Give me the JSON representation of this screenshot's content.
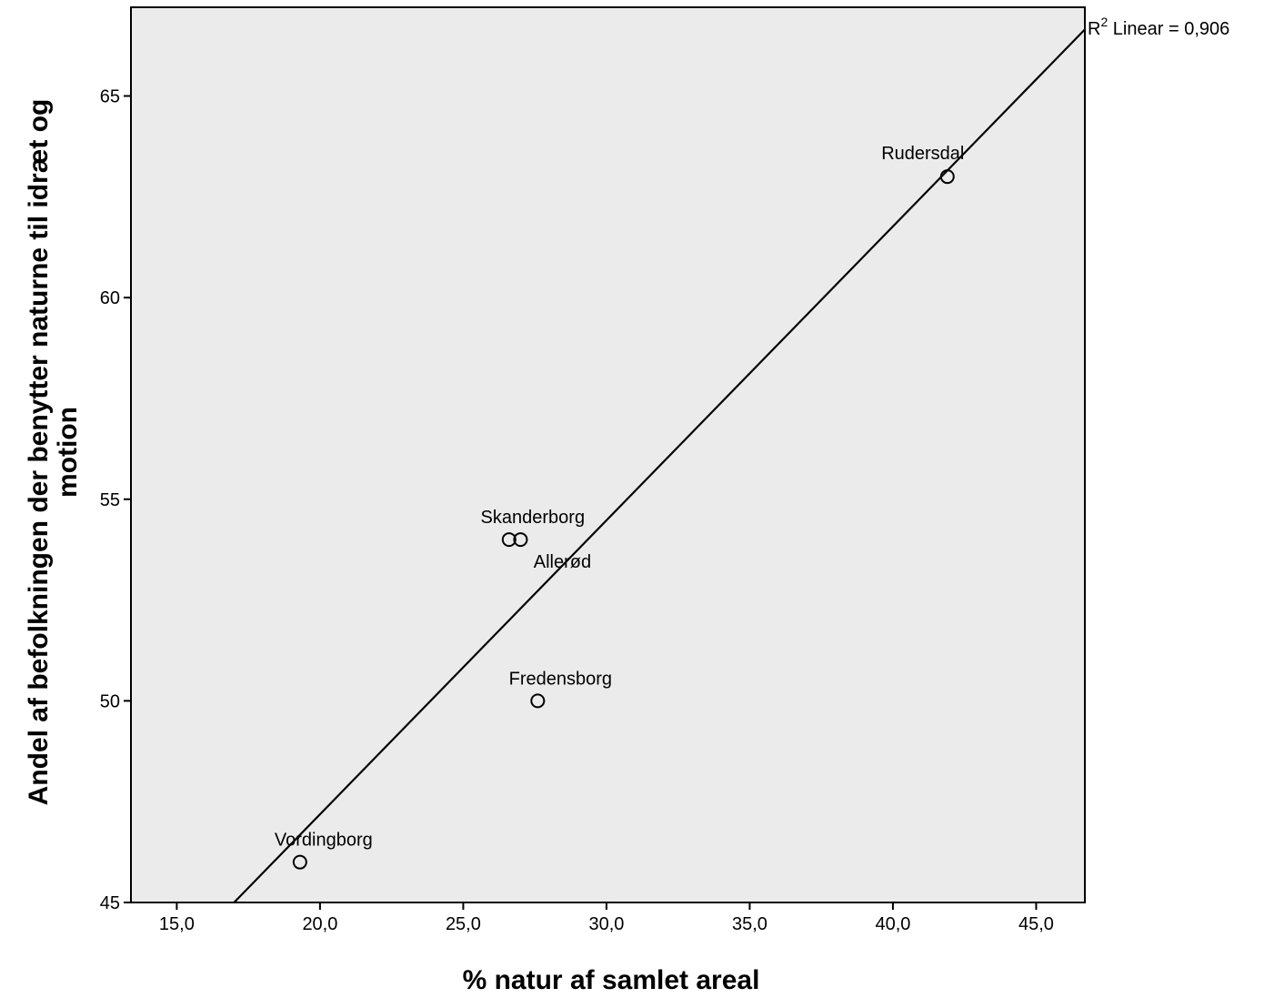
{
  "chart_data": {
    "type": "scatter",
    "title": "",
    "xlabel": "% natur af samlet areal",
    "ylabel_lines": [
      "Andel af befolkningen der benytter naturne til idræt og",
      "motion"
    ],
    "xlim": [
      13.4,
      46.7
    ],
    "ylim": [
      45,
      67.2
    ],
    "x_ticks": [
      15.0,
      20.0,
      25.0,
      30.0,
      35.0,
      40.0,
      45.0
    ],
    "x_tick_labels": [
      "15,0",
      "20,0",
      "25,0",
      "30,0",
      "35,0",
      "40,0",
      "45,0"
    ],
    "y_ticks": [
      45,
      50,
      55,
      60,
      65
    ],
    "y_tick_labels": [
      "45",
      "50",
      "55",
      "60",
      "65"
    ],
    "grid": false,
    "plot_background": "#ebebeb",
    "points": [
      {
        "label": "Rudersdal",
        "x": 41.9,
        "y": 63.0
      },
      {
        "label": "Skanderborg",
        "x": 26.6,
        "y": 54.0
      },
      {
        "label": "Allerød",
        "x": 27.0,
        "y": 54.0
      },
      {
        "label": "Fredensborg",
        "x": 27.6,
        "y": 50.0
      },
      {
        "label": "Vordingborg",
        "x": 19.3,
        "y": 46.0
      }
    ],
    "fit_line": {
      "type": "linear",
      "x": [
        17.0,
        46.7
      ],
      "y": [
        45.0,
        66.65
      ]
    },
    "fit_label": {
      "prefix": "R",
      "superscript": "2",
      "text": " Linear = 0,906"
    }
  }
}
